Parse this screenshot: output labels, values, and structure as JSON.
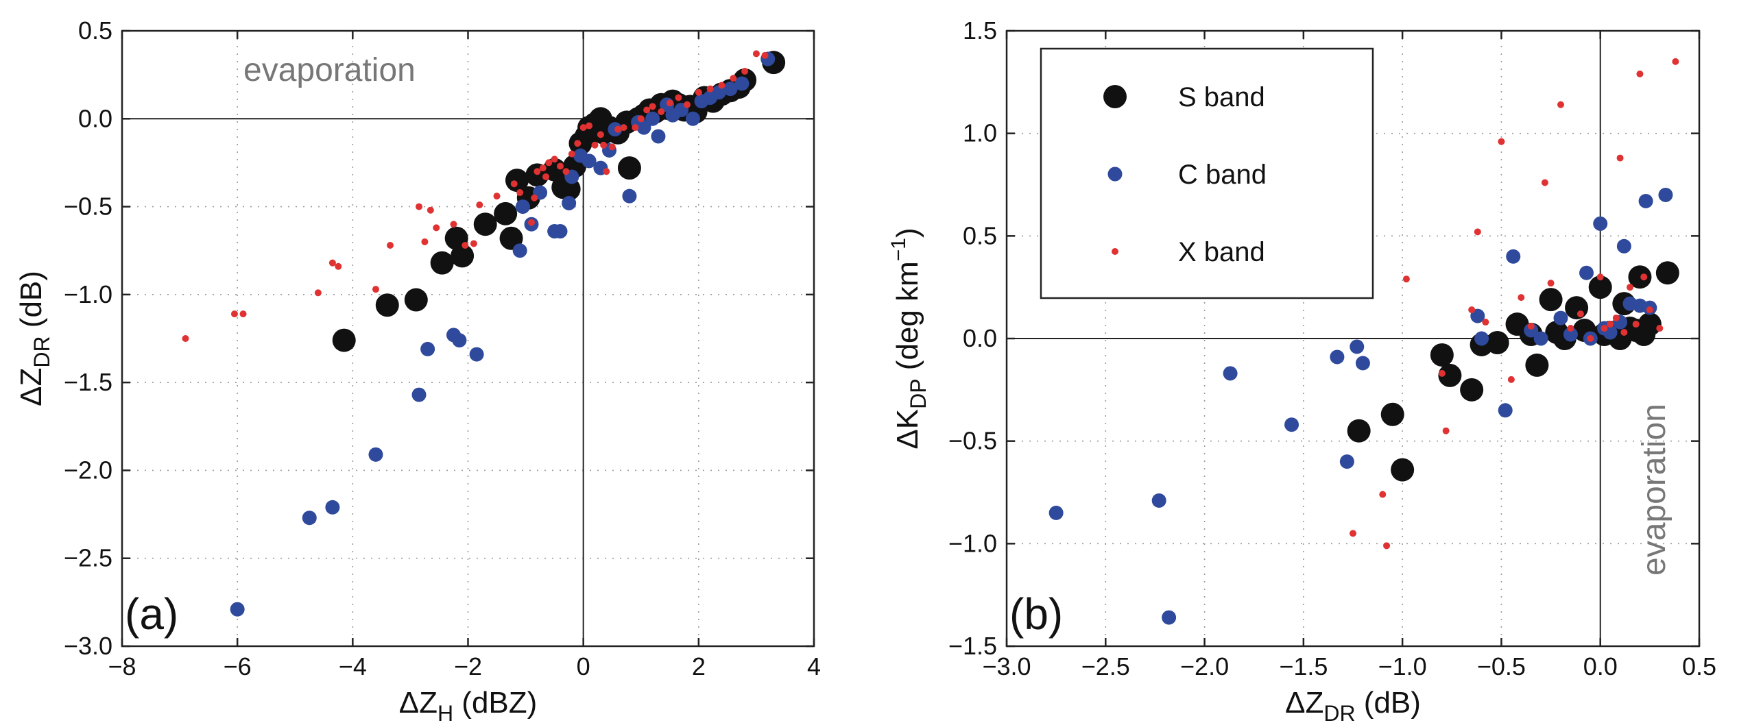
{
  "colors": {
    "s_band": "#111111",
    "c_band": "#2f4a9c",
    "x_band": "#e03232",
    "annotation": "#777777"
  },
  "chart_data": [
    {
      "type": "scatter",
      "panel": "(a)",
      "annotation": "evaporation",
      "xlabel": "ΔZ",
      "xlabel_sub": "H",
      "xlabel_unit": " (dBZ)",
      "ylabel": "ΔZ",
      "ylabel_sub": "DR",
      "ylabel_unit": " (dB)",
      "xlim": [
        -8,
        4
      ],
      "ylim": [
        -3.0,
        0.5
      ],
      "xticks": [
        -8,
        -6,
        -4,
        -2,
        0,
        2,
        4
      ],
      "xtick_labels": [
        "−8",
        "−6",
        "−4",
        "−2",
        "0",
        "2",
        "4"
      ],
      "yticks": [
        -3.0,
        -2.5,
        -2.0,
        -1.5,
        -1.0,
        -0.5,
        0.0,
        0.5
      ],
      "ytick_labels": [
        "−3.0",
        "−2.5",
        "−2.0",
        "−1.5",
        "−1.0",
        "−0.5",
        "0.0",
        "0.5"
      ],
      "grid": true,
      "series": [
        {
          "name": "S band",
          "key": "s",
          "x": [
            -4.15,
            -3.4,
            -2.9,
            -2.45,
            -2.2,
            -2.1,
            -1.7,
            -1.35,
            -1.25,
            -1.15,
            -0.95,
            -0.8,
            -0.5,
            -0.35,
            -0.25,
            -0.15,
            -0.05,
            0.05,
            0.1,
            0.2,
            0.3,
            0.35,
            0.45,
            0.6,
            0.75,
            0.8,
            0.95,
            1.05,
            1.15,
            1.25,
            1.35,
            1.45,
            1.55,
            1.65,
            1.75,
            1.85,
            1.95,
            2.1,
            2.25,
            2.4,
            2.55,
            2.7,
            2.8,
            3.3
          ],
          "y": [
            -1.26,
            -1.06,
            -1.03,
            -0.82,
            -0.68,
            -0.78,
            -0.6,
            -0.54,
            -0.68,
            -0.35,
            -0.45,
            -0.32,
            -0.29,
            -0.39,
            -0.4,
            -0.27,
            -0.14,
            -0.1,
            -0.05,
            -0.03,
            0.0,
            -0.08,
            -0.05,
            -0.08,
            -0.02,
            -0.28,
            0.0,
            0.02,
            0.05,
            0.04,
            0.08,
            0.06,
            0.1,
            0.08,
            0.05,
            0.07,
            0.04,
            0.12,
            0.1,
            0.14,
            0.16,
            0.18,
            0.22,
            0.32
          ]
        },
        {
          "name": "C band",
          "key": "c",
          "x": [
            -6.0,
            -4.75,
            -4.35,
            -3.6,
            -2.85,
            -2.7,
            -2.25,
            -2.15,
            -1.85,
            -1.1,
            -1.05,
            -0.9,
            -0.75,
            -0.5,
            -0.4,
            -0.25,
            -0.2,
            -0.05,
            0.1,
            0.3,
            0.45,
            0.55,
            0.8,
            0.95,
            1.05,
            1.2,
            1.3,
            1.45,
            1.55,
            1.7,
            1.9,
            2.05,
            2.2,
            2.35,
            2.55,
            2.75,
            3.2
          ],
          "y": [
            -2.79,
            -2.27,
            -2.21,
            -1.91,
            -1.57,
            -1.31,
            -1.23,
            -1.26,
            -1.34,
            -0.75,
            -0.5,
            -0.6,
            -0.42,
            -0.64,
            -0.64,
            -0.48,
            -0.33,
            -0.21,
            -0.24,
            -0.28,
            -0.18,
            -0.06,
            -0.44,
            -0.02,
            -0.05,
            0.0,
            -0.1,
            0.08,
            0.02,
            0.05,
            0.0,
            0.1,
            0.12,
            0.15,
            0.17,
            0.2,
            0.34
          ]
        },
        {
          "name": "X band",
          "key": "x",
          "x": [
            -6.9,
            -6.05,
            -5.9,
            -4.6,
            -4.35,
            -4.25,
            -3.6,
            -3.35,
            -2.85,
            -2.75,
            -2.65,
            -2.55,
            -2.25,
            -2.05,
            -1.9,
            -1.8,
            -1.5,
            -1.2,
            -1.1,
            -0.9,
            -0.85,
            -0.8,
            -0.7,
            -0.65,
            -0.6,
            -0.5,
            -0.4,
            -0.3,
            -0.2,
            -0.1,
            0.0,
            0.1,
            0.2,
            0.3,
            0.35,
            0.4,
            0.5,
            0.6,
            0.7,
            0.9,
            1.0,
            1.1,
            1.2,
            1.35,
            1.5,
            1.65,
            1.8,
            2.0,
            2.2,
            2.4,
            2.6,
            2.8,
            3.0,
            3.15
          ],
          "y": [
            -1.25,
            -1.11,
            -1.11,
            -0.99,
            -0.82,
            -0.84,
            -0.97,
            -0.72,
            -0.5,
            -0.7,
            -0.52,
            -0.62,
            -0.6,
            -0.72,
            -0.71,
            -0.49,
            -0.44,
            -0.37,
            -0.42,
            -0.59,
            -0.45,
            -0.3,
            -0.28,
            -0.33,
            -0.25,
            -0.23,
            -0.27,
            -0.3,
            -0.2,
            -0.14,
            -0.05,
            -0.04,
            -0.15,
            -0.09,
            -0.15,
            -0.3,
            -0.16,
            -0.06,
            -0.05,
            -0.05,
            0.0,
            0.05,
            0.07,
            0.04,
            0.09,
            0.12,
            0.08,
            0.15,
            0.17,
            0.19,
            0.23,
            0.27,
            0.37,
            0.36
          ]
        }
      ]
    },
    {
      "type": "scatter",
      "panel": "(b)",
      "annotation": "evaporation",
      "xlabel": "ΔZ",
      "xlabel_sub": "DR",
      "xlabel_unit": " (dB)",
      "ylabel": "ΔK",
      "ylabel_sub": "DP",
      "ylabel_unit": " (deg km",
      "ylabel_sup": "−1",
      "ylabel_close": ")",
      "xlim": [
        -3.0,
        0.5
      ],
      "ylim": [
        -1.5,
        1.5
      ],
      "xticks": [
        -3.0,
        -2.5,
        -2.0,
        -1.5,
        -1.0,
        -0.5,
        0.0,
        0.5
      ],
      "xtick_labels": [
        "−3.0",
        "−2.5",
        "−2.0",
        "−1.5",
        "−1.0",
        "−0.5",
        "0.0",
        "0.5"
      ],
      "yticks": [
        -1.5,
        -1.0,
        -0.5,
        0.0,
        0.5,
        1.0,
        1.5
      ],
      "ytick_labels": [
        "−1.5",
        "−1.0",
        "−0.5",
        "0.0",
        "0.5",
        "1.0",
        "1.5"
      ],
      "grid": true,
      "legend": {
        "placement": "top-left",
        "entries": [
          "S band",
          "C band",
          "X band"
        ]
      },
      "series": [
        {
          "name": "S band",
          "key": "s",
          "x": [
            -1.22,
            -1.05,
            -1.0,
            -0.8,
            -0.76,
            -0.65,
            -0.6,
            -0.52,
            -0.42,
            -0.35,
            -0.32,
            -0.25,
            -0.22,
            -0.18,
            -0.12,
            -0.08,
            0.0,
            0.02,
            0.05,
            0.1,
            0.12,
            0.15,
            0.18,
            0.2,
            0.22,
            0.25,
            0.34
          ],
          "y": [
            -0.45,
            -0.37,
            -0.64,
            -0.08,
            -0.18,
            -0.25,
            -0.03,
            -0.02,
            0.07,
            0.02,
            -0.13,
            0.19,
            0.03,
            0.0,
            0.15,
            0.04,
            0.25,
            0.02,
            0.03,
            0.0,
            0.17,
            0.05,
            0.04,
            0.3,
            0.02,
            0.07,
            0.32
          ]
        },
        {
          "name": "C band",
          "key": "c",
          "x": [
            -2.75,
            -2.23,
            -2.18,
            -1.87,
            -1.56,
            -1.33,
            -1.28,
            -1.23,
            -1.2,
            -0.62,
            -0.6,
            -0.48,
            -0.44,
            -0.35,
            -0.3,
            -0.2,
            -0.15,
            -0.07,
            -0.05,
            0.0,
            0.02,
            0.05,
            0.1,
            0.12,
            0.15,
            0.2,
            0.23,
            0.25,
            0.33
          ],
          "y": [
            -0.85,
            -0.79,
            -1.36,
            -0.17,
            -0.42,
            -0.09,
            -0.6,
            -0.04,
            -0.12,
            0.11,
            0.0,
            -0.35,
            0.4,
            0.04,
            0.0,
            0.1,
            0.02,
            0.32,
            0.0,
            0.56,
            0.05,
            0.03,
            0.08,
            0.45,
            0.17,
            0.16,
            0.67,
            0.15,
            0.7
          ]
        },
        {
          "name": "X band",
          "key": "x",
          "x": [
            -1.25,
            -1.1,
            -1.08,
            -0.98,
            -0.8,
            -0.78,
            -0.65,
            -0.62,
            -0.58,
            -0.5,
            -0.45,
            -0.4,
            -0.35,
            -0.28,
            -0.25,
            -0.2,
            -0.15,
            -0.1,
            -0.05,
            0.0,
            0.02,
            0.05,
            0.08,
            0.1,
            0.12,
            0.15,
            0.18,
            0.2,
            0.22,
            0.25,
            0.3,
            0.38
          ],
          "y": [
            -0.95,
            -0.76,
            -1.01,
            0.29,
            -0.17,
            -0.45,
            0.14,
            0.52,
            0.08,
            0.96,
            -0.2,
            0.2,
            0.06,
            0.76,
            0.27,
            1.14,
            0.05,
            0.12,
            0.0,
            0.3,
            0.05,
            0.07,
            0.1,
            0.88,
            0.03,
            0.25,
            0.07,
            1.29,
            0.3,
            0.14,
            0.05,
            1.35
          ]
        }
      ]
    }
  ]
}
